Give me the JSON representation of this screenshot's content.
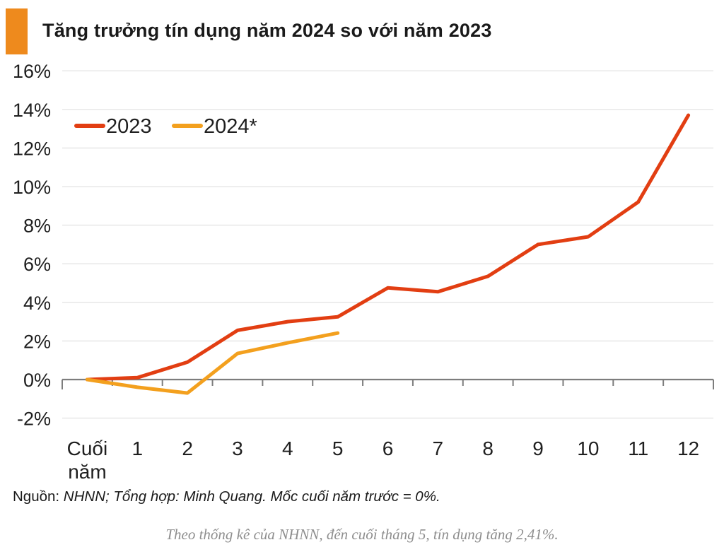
{
  "page": {
    "title": "Tăng trưởng tín dụng năm 2024 so với năm 2023",
    "source_prefix": "Nguồn:",
    "source_rest": " NHNN; Tổng hợp: Minh Quang. Mốc cuối năm trước = 0%.",
    "caption": "Theo thống kê của NHNN, đến cuối tháng 5, tín dụng tăng 2,41%."
  },
  "colors": {
    "title_marker": "#ee8a1d",
    "series_2023": "#e23e12",
    "series_2024": "#f3a01e",
    "axis": "#7d7d7d",
    "gridline": "#e9e9e9",
    "text": "#1f1f1f",
    "caption_text": "#8e8e8e"
  },
  "chart_data": {
    "type": "line",
    "title": "Tăng trưởng tín dụng năm 2024 so với năm 2023",
    "categories": [
      "Cuối năm",
      "1",
      "2",
      "3",
      "4",
      "5",
      "6",
      "7",
      "8",
      "9",
      "10",
      "11",
      "12"
    ],
    "series": [
      {
        "name": "2023",
        "color": "#e23e12",
        "values": [
          0,
          0.1,
          0.9,
          2.55,
          3.0,
          3.25,
          4.75,
          4.55,
          5.35,
          7.0,
          7.4,
          9.2,
          13.7
        ]
      },
      {
        "name": "2024*",
        "color": "#f3a01e",
        "values": [
          0,
          -0.4,
          -0.7,
          1.35,
          1.9,
          2.41
        ]
      }
    ],
    "yticks": [
      {
        "value": 16,
        "label": "16%"
      },
      {
        "value": 14,
        "label": "14%"
      },
      {
        "value": 12,
        "label": "12%"
      },
      {
        "value": 10,
        "label": "10%"
      },
      {
        "value": 8,
        "label": "8%"
      },
      {
        "value": 6,
        "label": "6%"
      },
      {
        "value": 4,
        "label": "4%"
      },
      {
        "value": 2,
        "label": "2%"
      },
      {
        "value": 0,
        "label": "0%"
      },
      {
        "value": -2,
        "label": "-2%"
      }
    ],
    "ylim": [
      -2,
      16
    ],
    "xlabel": "",
    "ylabel": "",
    "grid": true,
    "baseline_value": 0,
    "legend_position": "top-left-inside"
  }
}
